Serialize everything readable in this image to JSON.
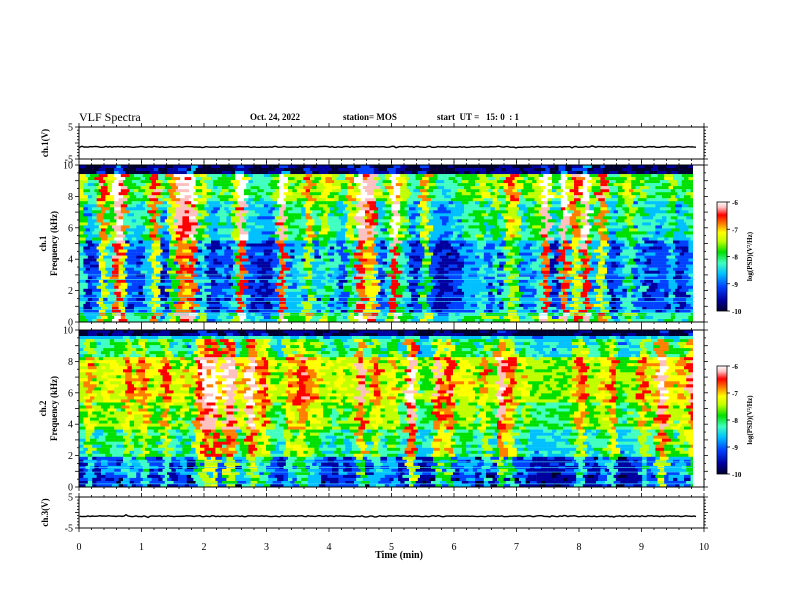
{
  "header": {
    "title": "VLF Spectra",
    "date": "Oct. 24, 2022",
    "station": "station= MOS",
    "start": "start  UT =   15: 0  : 1"
  },
  "colors": {
    "spectrogram_scale": [
      "#000030",
      "#0000a0",
      "#0040ff",
      "#00c0ff",
      "#40ffc0",
      "#00e000",
      "#c0ff00",
      "#ffff00",
      "#ff8000",
      "#ff0000",
      "#ffc0c0",
      "#ffffff"
    ]
  },
  "chart_data": [
    {
      "type": "line",
      "name": "ch1-waveform",
      "ylabel": "ch.1(V)",
      "ylim": [
        -5,
        5
      ],
      "yticks": [
        "5",
        "-5"
      ],
      "xlim": [
        0,
        10
      ],
      "baseline_v": -1.2
    },
    {
      "type": "heatmap",
      "name": "ch1-spectrogram",
      "ylabel": "ch.1\nFrequency (kHz)",
      "ylabel_lines": [
        "ch.1",
        "Frequency (kHz)"
      ],
      "ylim": [
        0,
        10
      ],
      "yticks": [
        "0",
        "2",
        "4",
        "6",
        "8",
        "10"
      ],
      "xlim": [
        0,
        10
      ],
      "data_end_min": 9.85,
      "colorbar": {
        "label": "log(PSD)(V²/Hz)",
        "range": [
          -10,
          -6
        ],
        "ticks": [
          "-6",
          "-7",
          "-8",
          "-9",
          "-10"
        ]
      }
    },
    {
      "type": "heatmap",
      "name": "ch2-spectrogram",
      "ylabel": "ch.2\nFrequency (kHz)",
      "ylabel_lines": [
        "ch.2",
        "Frequency (kHz)"
      ],
      "ylim": [
        0,
        10
      ],
      "yticks": [
        "0",
        "2",
        "4",
        "6",
        "8",
        "10"
      ],
      "xlim": [
        0,
        10
      ],
      "data_end_min": 9.85,
      "colorbar": {
        "label": "log(PSD)(V²/Hz)",
        "range": [
          -10,
          -6
        ],
        "ticks": [
          "-6",
          "-7",
          "-8",
          "-9",
          "-10"
        ]
      }
    },
    {
      "type": "line",
      "name": "ch3-waveform",
      "ylabel": "ch.3(V)",
      "ylim": [
        -5,
        5
      ],
      "yticks": [
        "5",
        "-5"
      ],
      "xlim": [
        0,
        10
      ],
      "baseline_v": -1.2,
      "xlabel": "Time  (min)",
      "xticks": [
        "0",
        "1",
        "2",
        "3",
        "4",
        "5",
        "6",
        "7",
        "8",
        "9",
        "10"
      ]
    }
  ]
}
